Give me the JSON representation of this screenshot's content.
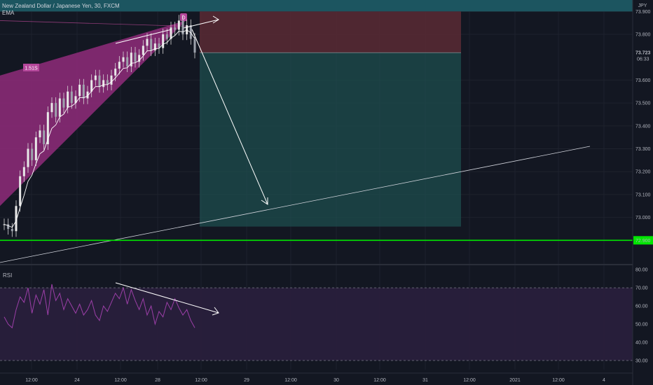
{
  "header": {
    "symbol": "New Zealand Dollar / Japanese Yen, 30, FXCM",
    "indicator": "EMA",
    "currency": "JPY"
  },
  "rsi_panel": {
    "label": "RSI"
  },
  "colors": {
    "background": "#131722",
    "pattern_fill": "#8a2a76",
    "accent_green": "#00e600",
    "target_zone": "#1e4d4d",
    "stop_zone": "#5a2a34",
    "rsi_line": "#9c3fa8",
    "rsi_band": "#2a1f3d"
  },
  "chart_data": [
    {
      "type": "line",
      "title": "",
      "xlabel": "",
      "ylabel": "",
      "ylim": [
        72.8,
        73.95
      ],
      "y_ticks": [
        "73.900",
        "73.800",
        "73.600",
        "73.500",
        "73.400",
        "73.300",
        "73.200",
        "73.100",
        "73.000"
      ],
      "x_ticks": [
        "12:00",
        "24",
        "12:00",
        "28",
        "12:00",
        "29",
        "12:00",
        "30",
        "12:00",
        "31",
        "12:00",
        "2021",
        "12:00",
        "4"
      ],
      "grid": true,
      "price_labels": {
        "current_price": "73.723",
        "countdown": "06:33",
        "support_level": "72.900"
      },
      "annotations": {
        "pattern_ratio": "1.51S",
        "point_label": "D"
      },
      "zones": {
        "stop_top": 73.9,
        "entry": 73.72,
        "target_bottom": 72.96
      },
      "support_level_value": 72.9,
      "series": [
        {
          "values": [
            72.97,
            72.95,
            72.94,
            73.05,
            73.18,
            73.22,
            73.3,
            73.25,
            73.35,
            73.38,
            73.32,
            73.46,
            73.5,
            73.44,
            73.52,
            73.48,
            73.55,
            73.5,
            73.53,
            73.58,
            73.52,
            73.55,
            73.6,
            73.62,
            73.57,
            73.6,
            73.58,
            73.62,
            73.65,
            73.68,
            73.7,
            73.66,
            73.72,
            73.68,
            73.71,
            73.75,
            73.78,
            73.73,
            73.76,
            73.74,
            73.8,
            73.78,
            73.83,
            73.82,
            73.86,
            73.8,
            73.84,
            73.78,
            73.72
          ]
        }
      ]
    },
    {
      "type": "line",
      "title": "",
      "ylim": [
        25,
        82
      ],
      "y_ticks": [
        "80.00",
        "70.00",
        "60.00",
        "50.00",
        "40.00",
        "30.00"
      ],
      "bands": [
        70,
        30
      ],
      "series": [
        {
          "values": [
            54,
            50,
            48,
            58,
            65,
            62,
            70,
            56,
            66,
            61,
            69,
            55,
            72,
            63,
            67,
            58,
            64,
            60,
            56,
            61,
            55,
            58,
            63,
            55,
            52,
            60,
            57,
            62,
            67,
            64,
            70,
            61,
            69,
            63,
            58,
            64,
            55,
            60,
            50,
            57,
            54,
            62,
            58,
            64,
            59,
            55,
            58,
            52,
            48
          ]
        }
      ]
    }
  ]
}
